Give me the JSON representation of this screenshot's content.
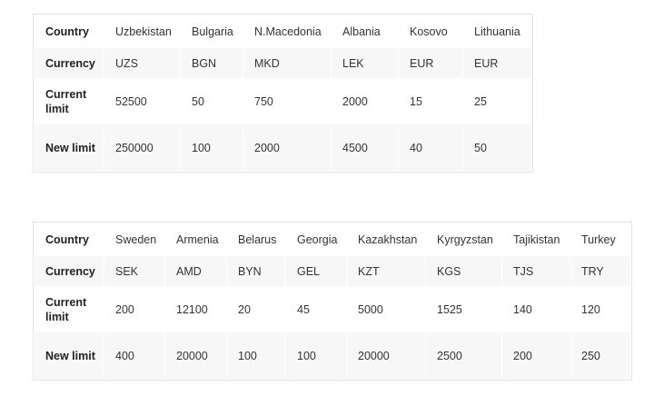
{
  "tables": [
    {
      "rows": [
        {
          "label": "Country",
          "cells": [
            "Uzbekistan",
            "Bulgaria",
            "N.Macedonia",
            "Albania",
            "Kosovo",
            "Lithuania"
          ]
        },
        {
          "label": "Currency",
          "cells": [
            "UZS",
            "BGN",
            "MKD",
            "LEK",
            "EUR",
            "EUR"
          ]
        },
        {
          "label": "Current limit",
          "cells": [
            "52500",
            "50",
            "750",
            "2000",
            "15",
            "25"
          ]
        },
        {
          "label": "New limit",
          "cells": [
            "250000",
            "100",
            "2000",
            "4500",
            "40",
            "50"
          ]
        }
      ]
    },
    {
      "rows": [
        {
          "label": "Country",
          "cells": [
            "Sweden",
            "Armenia",
            "Belarus",
            "Georgia",
            "Kazakhstan",
            "Kyrgyzstan",
            "Tajikistan",
            "Turkey"
          ]
        },
        {
          "label": "Currency",
          "cells": [
            "SEK",
            "AMD",
            "BYN",
            "GEL",
            "KZT",
            "KGS",
            "TJS",
            "TRY"
          ]
        },
        {
          "label": "Current limit",
          "cells": [
            "200",
            "12100",
            "20",
            "45",
            "5000",
            "1525",
            "140",
            "120"
          ]
        },
        {
          "label": "New limit",
          "cells": [
            "400",
            "20000",
            "100",
            "100",
            "20000",
            "2500",
            "200",
            "250"
          ]
        }
      ]
    }
  ]
}
